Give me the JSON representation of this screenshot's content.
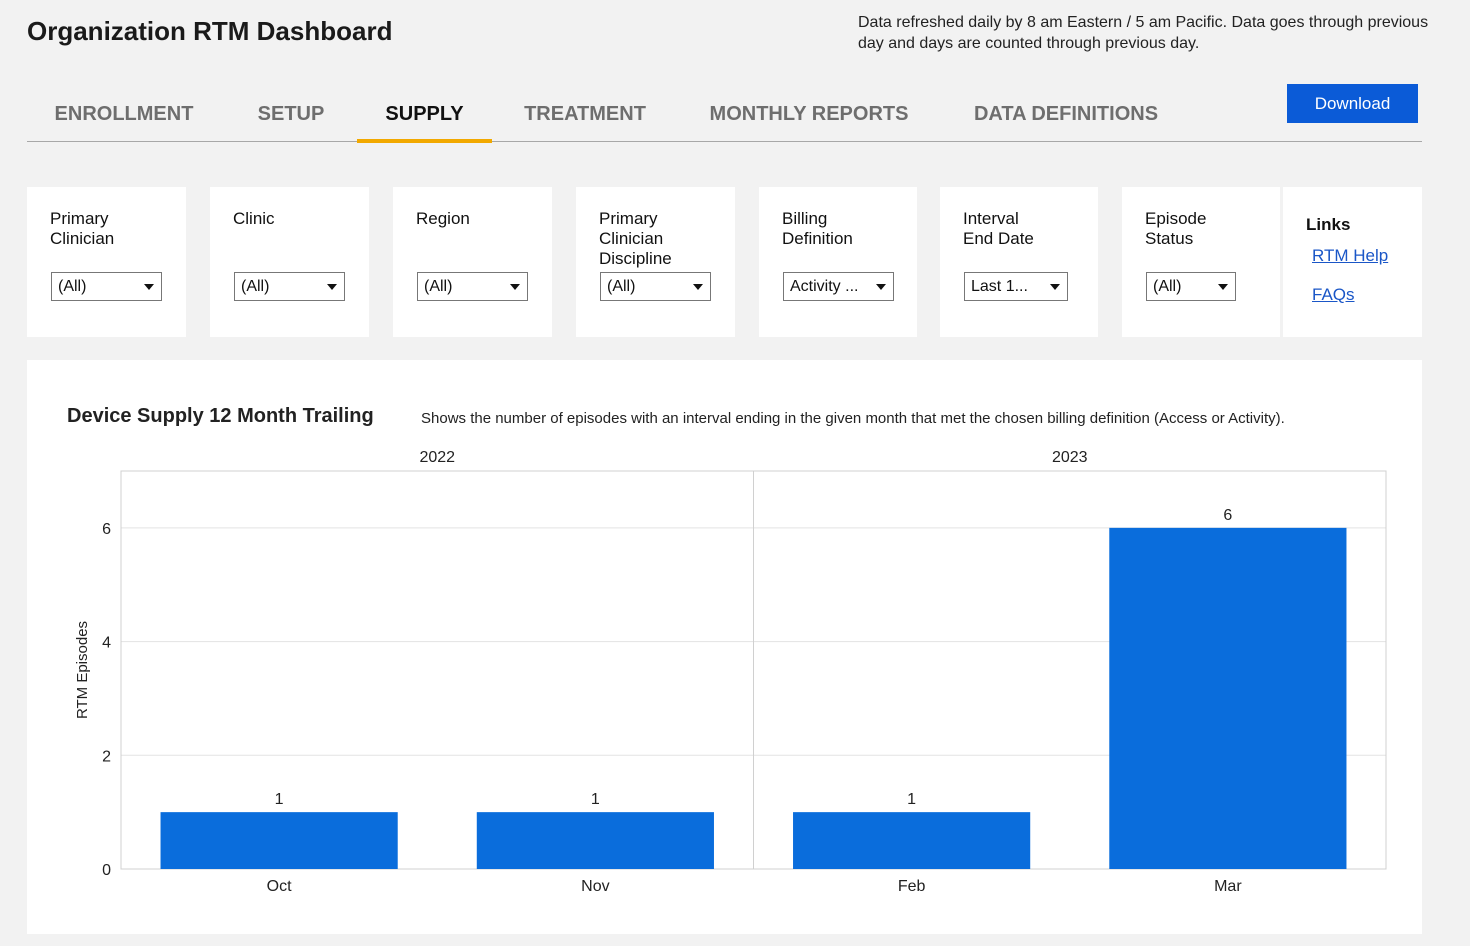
{
  "page": {
    "title": "Organization RTM Dashboard",
    "refresh_note": "Data refreshed daily by 8 am Eastern / 5 am Pacific. Data goes through previous day and days are counted through previous day."
  },
  "tabs": [
    {
      "label": "ENROLLMENT",
      "active": false
    },
    {
      "label": "SETUP",
      "active": false
    },
    {
      "label": "SUPPLY",
      "active": true
    },
    {
      "label": "TREATMENT",
      "active": false
    },
    {
      "label": "MONTHLY REPORTS",
      "active": false
    },
    {
      "label": "DATA DEFINITIONS",
      "active": false
    }
  ],
  "download_label": "Download",
  "filters": [
    {
      "label": "Primary Clinician",
      "value": "(All)"
    },
    {
      "label": "Clinic",
      "value": "(All)"
    },
    {
      "label": "Region",
      "value": "(All)"
    },
    {
      "label": "Primary Clinician Discipline",
      "value": "(All)"
    },
    {
      "label": "Billing Definition",
      "value": "Activity ..."
    },
    {
      "label": "Interval End Date",
      "value": "Last 1..."
    },
    {
      "label": "Episode Status",
      "value": "(All)"
    }
  ],
  "links": {
    "title": "Links",
    "items": [
      "RTM Help",
      "FAQs"
    ]
  },
  "colors": {
    "accent": "#0b5bd7",
    "bar": "#0a6ddc",
    "tab_indicator": "#f2a900",
    "link": "#1a56c7"
  },
  "chart_data": {
    "type": "bar",
    "title": "Device Supply 12 Month Trailing",
    "subtitle": "Shows the number of episodes with an interval ending in the given month that met the chosen billing definition (Access or Activity).",
    "ylabel": "RTM Episodes",
    "xlabel": "",
    "ylim": [
      0,
      7
    ],
    "yticks": [
      0,
      2,
      4,
      6
    ],
    "grid": true,
    "groups": [
      {
        "label": "2022",
        "categories": [
          "Oct",
          "Nov"
        ],
        "values": [
          1,
          1
        ]
      },
      {
        "label": "2023",
        "categories": [
          "Feb",
          "Mar"
        ],
        "values": [
          1,
          6
        ]
      }
    ],
    "data_labels": true
  }
}
